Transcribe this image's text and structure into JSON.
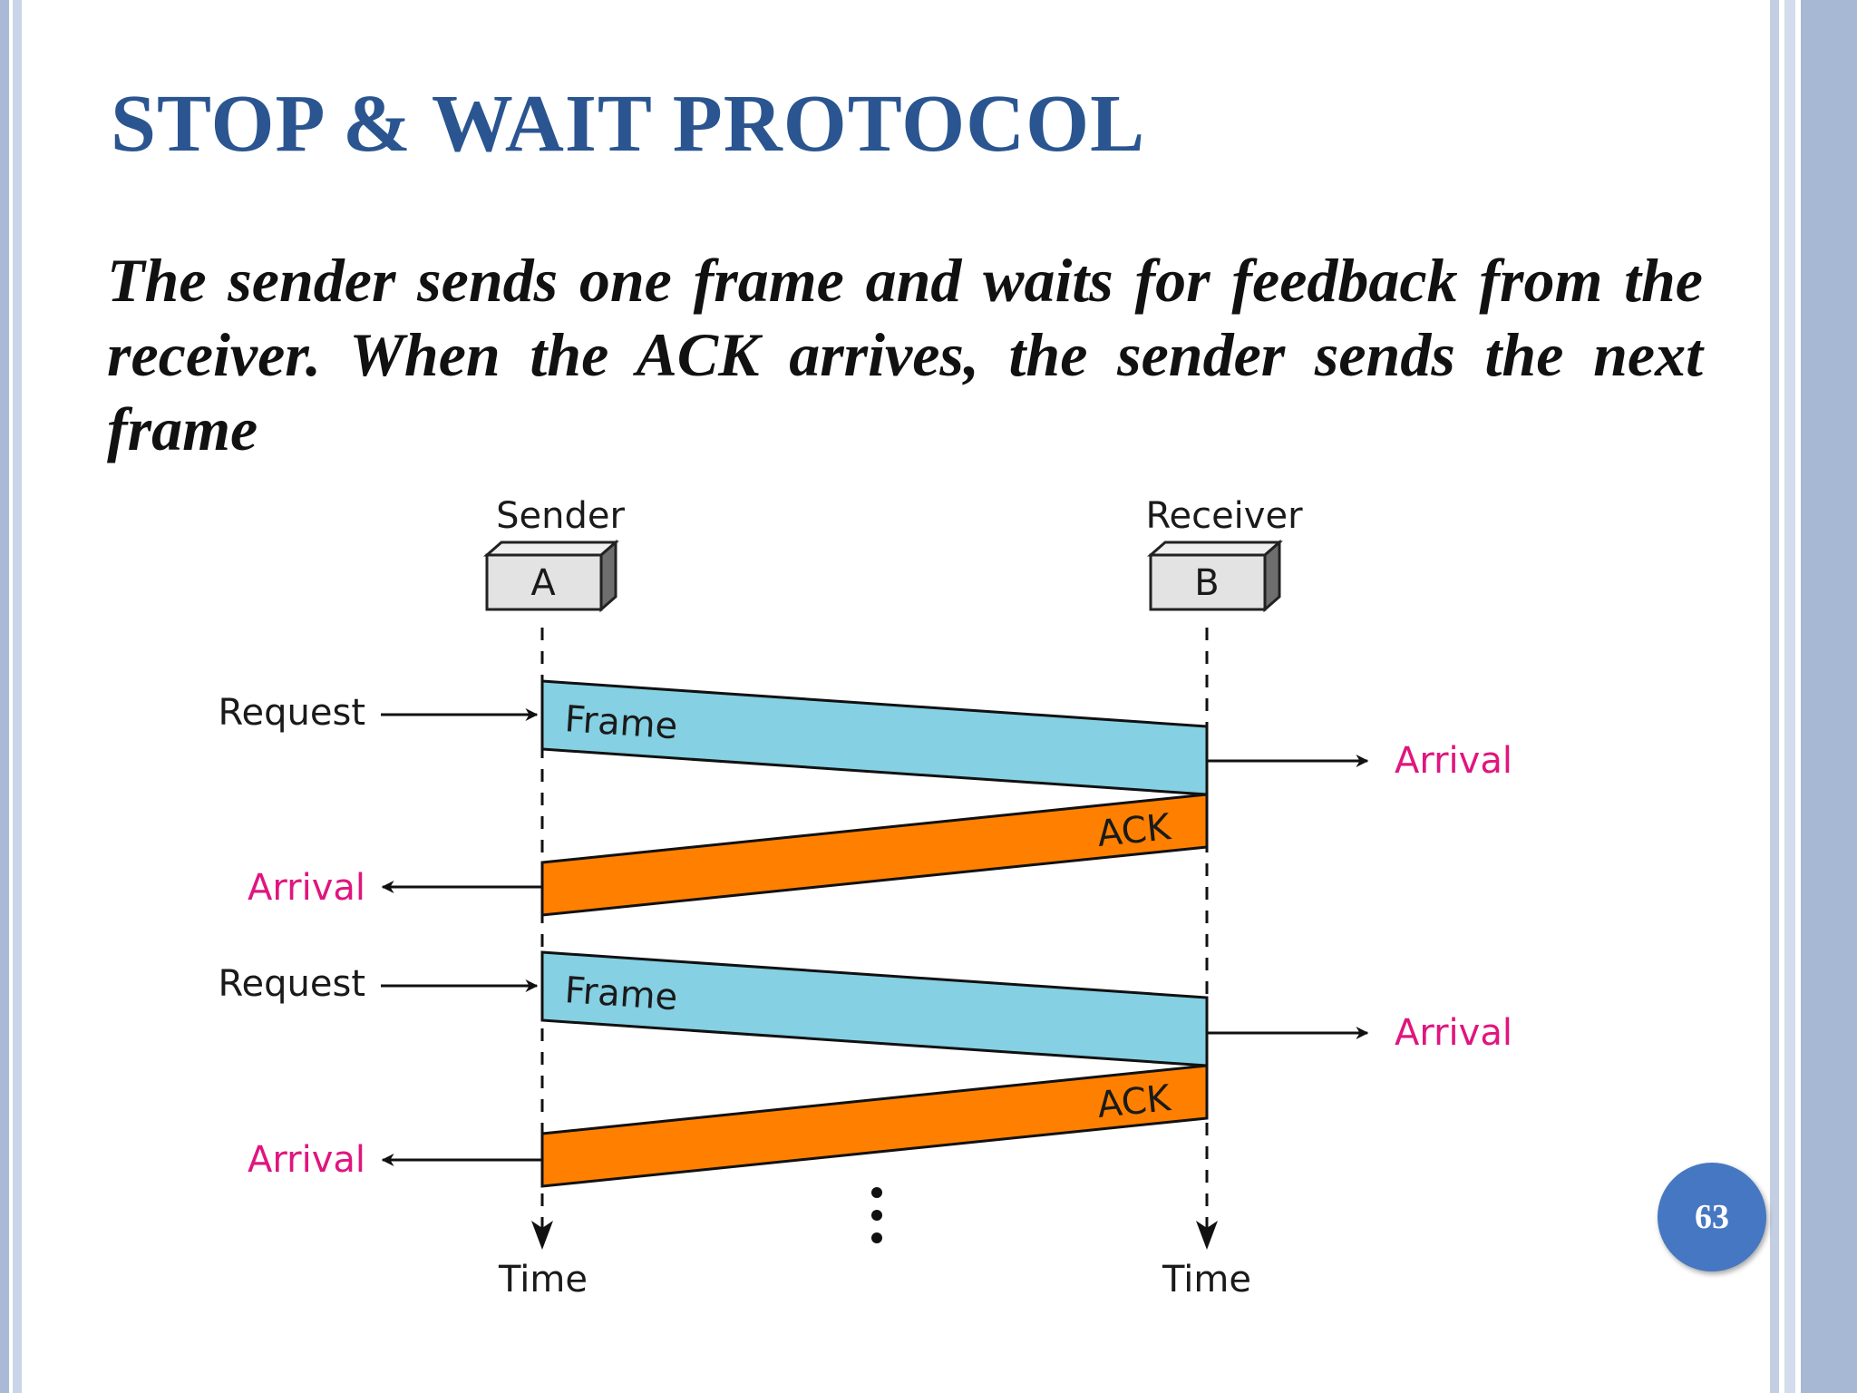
{
  "slide": {
    "title": "STOP & WAIT PROTOCOL",
    "body": "The sender sends one frame and waits for feedback from the receiver. When the ACK arrives, the sender sends the next frame",
    "page_number": "63"
  },
  "diagram": {
    "sender_label": "Sender",
    "receiver_label": "Receiver",
    "sender_box": "A",
    "receiver_box": "B",
    "request_label": "Request",
    "arrival_label": "Arrival",
    "frame_label": "Frame",
    "ack_label": "ACK",
    "time_label": "Time",
    "colors": {
      "frame": "#85d0e3",
      "ack": "#ff8000",
      "arrival_text": "#e0157e",
      "title": "#2a5590"
    }
  }
}
